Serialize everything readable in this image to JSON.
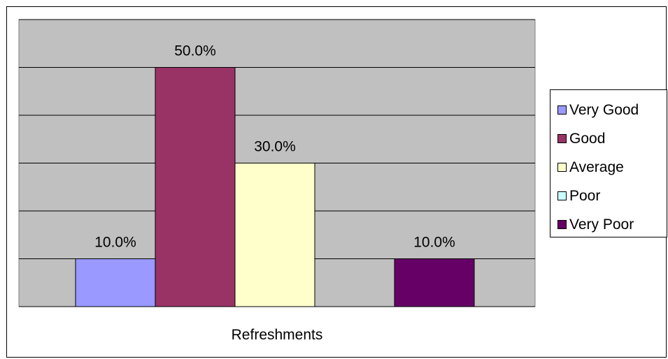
{
  "chart_data": {
    "type": "bar",
    "categories": [
      "Refreshments"
    ],
    "series": [
      {
        "name": "Very Good",
        "values": [
          10.0
        ],
        "label": "10.0%",
        "color": "#9999ff"
      },
      {
        "name": "Good",
        "values": [
          50.0
        ],
        "label": "50.0%",
        "color": "#993366"
      },
      {
        "name": "Average",
        "values": [
          30.0
        ],
        "label": "30.0%",
        "color": "#ffffcc"
      },
      {
        "name": "Poor",
        "values": [
          0.0
        ],
        "label": "",
        "color": "#ccffff"
      },
      {
        "name": "Very Poor",
        "values": [
          10.0
        ],
        "label": "10.0%",
        "color": "#660066"
      }
    ],
    "ylim": [
      0,
      60
    ],
    "y_gridline_step": 10,
    "grid": true,
    "y_axis_labels_shown": false,
    "plot_background": "#c0c0c0",
    "legend_position": "right",
    "title": "",
    "xlabel": "",
    "ylabel": ""
  }
}
